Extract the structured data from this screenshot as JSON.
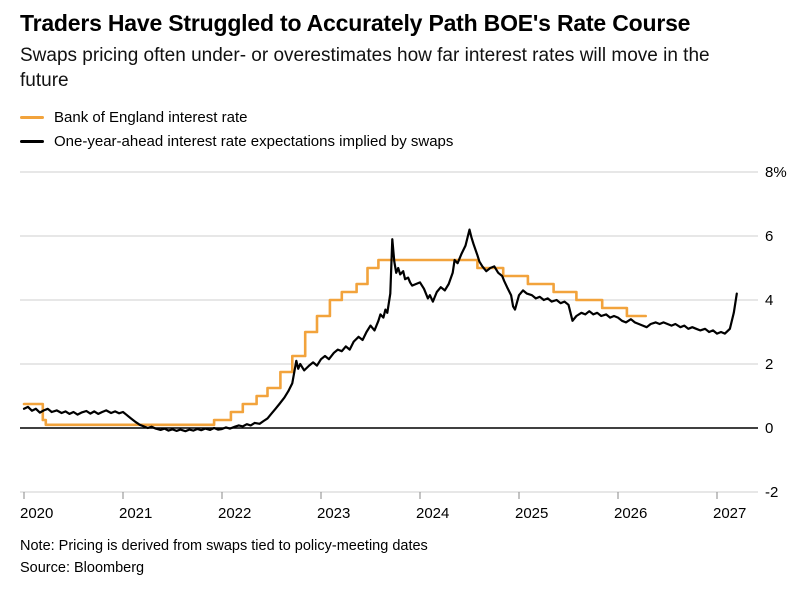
{
  "header": {
    "title": "Traders Have Struggled to Accurately Path BOE's Rate Course",
    "subtitle": "Swaps pricing often under- or overestimates how far interest rates will move in the future"
  },
  "legend": {
    "series1": "Bank of England interest rate",
    "series2": "One-year-ahead interest rate expectations implied by swaps"
  },
  "footer": {
    "note": "Note: Pricing is derived from swaps tied to policy-meeting dates",
    "source": "Source: Bloomberg"
  },
  "colors": {
    "boe_orange": "#F2A33C",
    "swaps_black": "#000000",
    "gridline": "#cfcfcf",
    "zeroline": "#000000"
  },
  "chart_data": {
    "type": "line",
    "title": "Traders Have Struggled to Accurately Path BOE's Rate Course",
    "subtitle": "Swaps pricing often under- or overestimates how far interest rates will move in the future",
    "xlabel": "",
    "ylabel": "",
    "xlim": [
      2019.95,
      2027.45
    ],
    "ylim": [
      -2,
      8
    ],
    "grid": true,
    "legend_position": "top-left",
    "yticks": [
      {
        "v": 8,
        "label": "8%"
      },
      {
        "v": 6,
        "label": "6"
      },
      {
        "v": 4,
        "label": "4"
      },
      {
        "v": 2,
        "label": "2"
      },
      {
        "v": 0,
        "label": "0"
      },
      {
        "v": -2,
        "label": "-2"
      }
    ],
    "xticks": [
      {
        "v": 2020,
        "label": "2020"
      },
      {
        "v": 2021,
        "label": "2021"
      },
      {
        "v": 2022,
        "label": "2022"
      },
      {
        "v": 2023,
        "label": "2023"
      },
      {
        "v": 2024,
        "label": "2024"
      },
      {
        "v": 2025,
        "label": "2025"
      },
      {
        "v": 2026,
        "label": "2026"
      },
      {
        "v": 2027,
        "label": "2027"
      }
    ],
    "series": [
      {
        "name": "Bank of England interest rate",
        "draw": "step",
        "color": "#F2A33C",
        "points": [
          [
            2020.0,
            0.75
          ],
          [
            2020.19,
            0.25
          ],
          [
            2020.22,
            0.1
          ],
          [
            2021.92,
            0.25
          ],
          [
            2022.09,
            0.5
          ],
          [
            2022.21,
            0.75
          ],
          [
            2022.35,
            1.0
          ],
          [
            2022.46,
            1.25
          ],
          [
            2022.59,
            1.75
          ],
          [
            2022.71,
            2.25
          ],
          [
            2022.84,
            3.0
          ],
          [
            2022.96,
            3.5
          ],
          [
            2023.09,
            4.0
          ],
          [
            2023.21,
            4.25
          ],
          [
            2023.36,
            4.5
          ],
          [
            2023.47,
            5.0
          ],
          [
            2023.58,
            5.25
          ],
          [
            2024.58,
            5.0
          ],
          [
            2024.84,
            4.75
          ],
          [
            2025.09,
            4.5
          ],
          [
            2025.35,
            4.25
          ],
          [
            2025.58,
            4.0
          ],
          [
            2025.84,
            3.75
          ],
          [
            2026.09,
            3.5
          ],
          [
            2026.28,
            3.5
          ]
        ]
      },
      {
        "name": "One-year-ahead interest rate expectations implied by swaps",
        "draw": "line",
        "color": "#000000",
        "points": [
          [
            2020.0,
            0.6
          ],
          [
            2020.04,
            0.66
          ],
          [
            2020.08,
            0.54
          ],
          [
            2020.12,
            0.6
          ],
          [
            2020.16,
            0.48
          ],
          [
            2020.2,
            0.55
          ],
          [
            2020.24,
            0.6
          ],
          [
            2020.28,
            0.5
          ],
          [
            2020.33,
            0.55
          ],
          [
            2020.38,
            0.47
          ],
          [
            2020.42,
            0.52
          ],
          [
            2020.46,
            0.44
          ],
          [
            2020.5,
            0.5
          ],
          [
            2020.54,
            0.42
          ],
          [
            2020.58,
            0.48
          ],
          [
            2020.63,
            0.53
          ],
          [
            2020.67,
            0.45
          ],
          [
            2020.71,
            0.52
          ],
          [
            2020.75,
            0.44
          ],
          [
            2020.79,
            0.5
          ],
          [
            2020.83,
            0.55
          ],
          [
            2020.88,
            0.47
          ],
          [
            2020.92,
            0.52
          ],
          [
            2020.96,
            0.46
          ],
          [
            2021.0,
            0.5
          ],
          [
            2021.04,
            0.4
          ],
          [
            2021.08,
            0.3
          ],
          [
            2021.13,
            0.18
          ],
          [
            2021.17,
            0.1
          ],
          [
            2021.21,
            0.05
          ],
          [
            2021.25,
            0.0
          ],
          [
            2021.29,
            0.04
          ],
          [
            2021.33,
            -0.02
          ],
          [
            2021.38,
            -0.06
          ],
          [
            2021.42,
            -0.02
          ],
          [
            2021.46,
            -0.08
          ],
          [
            2021.5,
            -0.04
          ],
          [
            2021.54,
            -0.09
          ],
          [
            2021.58,
            -0.05
          ],
          [
            2021.63,
            -0.1
          ],
          [
            2021.67,
            -0.05
          ],
          [
            2021.71,
            -0.08
          ],
          [
            2021.75,
            -0.03
          ],
          [
            2021.79,
            -0.07
          ],
          [
            2021.83,
            -0.02
          ],
          [
            2021.88,
            -0.06
          ],
          [
            2021.92,
            0.0
          ],
          [
            2021.96,
            -0.05
          ],
          [
            2022.0,
            -0.03
          ],
          [
            2022.04,
            0.02
          ],
          [
            2022.08,
            -0.02
          ],
          [
            2022.13,
            0.04
          ],
          [
            2022.17,
            0.08
          ],
          [
            2022.21,
            0.05
          ],
          [
            2022.25,
            0.12
          ],
          [
            2022.29,
            0.08
          ],
          [
            2022.33,
            0.16
          ],
          [
            2022.38,
            0.13
          ],
          [
            2022.42,
            0.22
          ],
          [
            2022.46,
            0.3
          ],
          [
            2022.5,
            0.45
          ],
          [
            2022.54,
            0.6
          ],
          [
            2022.58,
            0.75
          ],
          [
            2022.63,
            0.95
          ],
          [
            2022.67,
            1.15
          ],
          [
            2022.71,
            1.4
          ],
          [
            2022.75,
            2.1
          ],
          [
            2022.77,
            1.85
          ],
          [
            2022.79,
            2.0
          ],
          [
            2022.83,
            1.8
          ],
          [
            2022.88,
            1.95
          ],
          [
            2022.92,
            2.05
          ],
          [
            2022.96,
            1.95
          ],
          [
            2023.0,
            2.15
          ],
          [
            2023.04,
            2.25
          ],
          [
            2023.08,
            2.15
          ],
          [
            2023.13,
            2.35
          ],
          [
            2023.17,
            2.45
          ],
          [
            2023.21,
            2.4
          ],
          [
            2023.25,
            2.55
          ],
          [
            2023.29,
            2.45
          ],
          [
            2023.33,
            2.7
          ],
          [
            2023.38,
            2.85
          ],
          [
            2023.42,
            2.75
          ],
          [
            2023.46,
            3.0
          ],
          [
            2023.5,
            3.2
          ],
          [
            2023.54,
            3.05
          ],
          [
            2023.58,
            3.35
          ],
          [
            2023.6,
            3.55
          ],
          [
            2023.63,
            3.45
          ],
          [
            2023.65,
            3.7
          ],
          [
            2023.67,
            3.6
          ],
          [
            2023.7,
            4.2
          ],
          [
            2023.72,
            5.9
          ],
          [
            2023.74,
            5.2
          ],
          [
            2023.76,
            4.85
          ],
          [
            2023.78,
            5.0
          ],
          [
            2023.8,
            4.8
          ],
          [
            2023.83,
            4.9
          ],
          [
            2023.85,
            4.65
          ],
          [
            2023.88,
            4.7
          ],
          [
            2023.9,
            4.55
          ],
          [
            2023.92,
            4.45
          ],
          [
            2023.96,
            4.5
          ],
          [
            2024.0,
            4.55
          ],
          [
            2024.04,
            4.35
          ],
          [
            2024.08,
            4.05
          ],
          [
            2024.1,
            4.15
          ],
          [
            2024.13,
            3.95
          ],
          [
            2024.17,
            4.25
          ],
          [
            2024.21,
            4.4
          ],
          [
            2024.25,
            4.3
          ],
          [
            2024.29,
            4.5
          ],
          [
            2024.33,
            4.85
          ],
          [
            2024.35,
            5.25
          ],
          [
            2024.38,
            5.15
          ],
          [
            2024.42,
            5.45
          ],
          [
            2024.46,
            5.7
          ],
          [
            2024.5,
            6.2
          ],
          [
            2024.52,
            5.95
          ],
          [
            2024.54,
            5.75
          ],
          [
            2024.58,
            5.4
          ],
          [
            2024.6,
            5.2
          ],
          [
            2024.63,
            5.05
          ],
          [
            2024.67,
            4.9
          ],
          [
            2024.71,
            5.0
          ],
          [
            2024.75,
            5.05
          ],
          [
            2024.79,
            4.85
          ],
          [
            2024.83,
            4.75
          ],
          [
            2024.85,
            4.6
          ],
          [
            2024.88,
            4.4
          ],
          [
            2024.92,
            4.15
          ],
          [
            2024.94,
            3.8
          ],
          [
            2024.96,
            3.7
          ],
          [
            2025.0,
            4.15
          ],
          [
            2025.04,
            4.3
          ],
          [
            2025.08,
            4.2
          ],
          [
            2025.13,
            4.15
          ],
          [
            2025.17,
            4.05
          ],
          [
            2025.21,
            4.1
          ],
          [
            2025.25,
            4.0
          ],
          [
            2025.29,
            4.05
          ],
          [
            2025.33,
            3.95
          ],
          [
            2025.38,
            4.0
          ],
          [
            2025.42,
            3.9
          ],
          [
            2025.46,
            3.95
          ],
          [
            2025.5,
            3.85
          ],
          [
            2025.52,
            3.6
          ],
          [
            2025.54,
            3.35
          ],
          [
            2025.58,
            3.5
          ],
          [
            2025.63,
            3.6
          ],
          [
            2025.67,
            3.55
          ],
          [
            2025.71,
            3.65
          ],
          [
            2025.75,
            3.55
          ],
          [
            2025.79,
            3.6
          ],
          [
            2025.83,
            3.5
          ],
          [
            2025.88,
            3.55
          ],
          [
            2025.92,
            3.45
          ],
          [
            2025.96,
            3.5
          ],
          [
            2026.0,
            3.45
          ],
          [
            2026.04,
            3.35
          ],
          [
            2026.08,
            3.3
          ],
          [
            2026.13,
            3.4
          ],
          [
            2026.17,
            3.3
          ],
          [
            2026.21,
            3.25
          ],
          [
            2026.25,
            3.2
          ],
          [
            2026.29,
            3.15
          ],
          [
            2026.33,
            3.25
          ],
          [
            2026.38,
            3.3
          ],
          [
            2026.42,
            3.25
          ],
          [
            2026.46,
            3.3
          ],
          [
            2026.5,
            3.25
          ],
          [
            2026.54,
            3.2
          ],
          [
            2026.58,
            3.25
          ],
          [
            2026.63,
            3.15
          ],
          [
            2026.67,
            3.2
          ],
          [
            2026.71,
            3.1
          ],
          [
            2026.75,
            3.15
          ],
          [
            2026.79,
            3.1
          ],
          [
            2026.83,
            3.05
          ],
          [
            2026.88,
            3.1
          ],
          [
            2026.92,
            3.0
          ],
          [
            2026.96,
            3.05
          ],
          [
            2027.0,
            2.95
          ],
          [
            2027.04,
            3.0
          ],
          [
            2027.08,
            2.95
          ],
          [
            2027.13,
            3.1
          ],
          [
            2027.17,
            3.6
          ],
          [
            2027.2,
            4.2
          ]
        ]
      }
    ]
  }
}
